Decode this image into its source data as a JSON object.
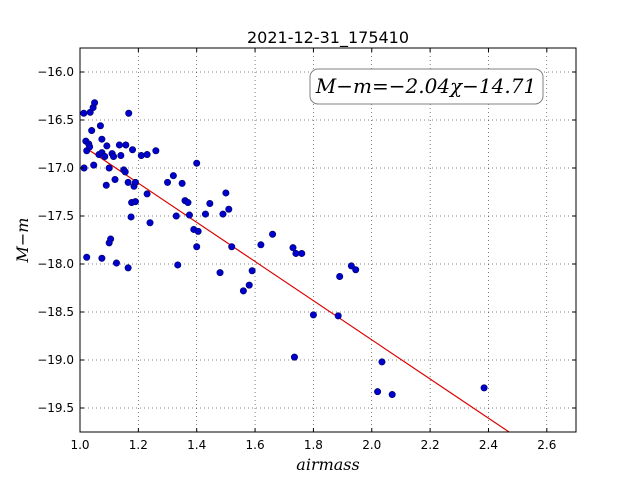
{
  "chart_data": {
    "type": "scatter",
    "title": "2021-12-31_175410",
    "xlabel": "airmass",
    "ylabel": "M−m",
    "xlim": [
      1.0,
      2.7
    ],
    "ylim": [
      -19.75,
      -15.75
    ],
    "x_ticks": [
      1.0,
      1.2,
      1.4,
      1.6,
      1.8,
      2.0,
      2.2,
      2.4,
      2.6
    ],
    "x_tick_labels": [
      "1.0",
      "1.2",
      "1.4",
      "1.6",
      "1.8",
      "2.0",
      "2.2",
      "2.4",
      "2.6"
    ],
    "y_ticks": [
      -16.0,
      -16.5,
      -17.0,
      -17.5,
      -18.0,
      -18.5,
      -19.0,
      -19.5
    ],
    "y_tick_labels": [
      "−16.0",
      "−16.5",
      "−17.0",
      "−17.5",
      "−18.0",
      "−18.5",
      "−19.0",
      "−19.5"
    ],
    "grid": true,
    "annotation": "M−m=−2.04χ−14.71",
    "fit": {
      "slope": -2.04,
      "intercept": -14.71,
      "x_start": 1.03,
      "color": "#dd0000"
    },
    "point_color": "#0000cc",
    "points": [
      [
        1.013,
        -16.43
      ],
      [
        1.014,
        -17.0
      ],
      [
        1.02,
        -16.72
      ],
      [
        1.023,
        -16.82
      ],
      [
        1.03,
        -16.75
      ],
      [
        1.033,
        -16.78
      ],
      [
        1.035,
        -16.42
      ],
      [
        1.04,
        -16.61
      ],
      [
        1.045,
        -16.37
      ],
      [
        1.05,
        -16.32
      ],
      [
        1.047,
        -16.97
      ],
      [
        1.023,
        -17.93
      ],
      [
        1.065,
        -16.86
      ],
      [
        1.07,
        -16.56
      ],
      [
        1.075,
        -16.7
      ],
      [
        1.075,
        -16.84
      ],
      [
        1.085,
        -16.88
      ],
      [
        1.092,
        -16.77
      ],
      [
        1.09,
        -17.18
      ],
      [
        1.1,
        -17.0
      ],
      [
        1.11,
        -16.85
      ],
      [
        1.12,
        -17.12
      ],
      [
        1.115,
        -16.88
      ],
      [
        1.135,
        -16.76
      ],
      [
        1.14,
        -16.87
      ],
      [
        1.15,
        -17.02
      ],
      [
        1.157,
        -16.76
      ],
      [
        1.155,
        -17.04
      ],
      [
        1.165,
        -17.15
      ],
      [
        1.167,
        -16.43
      ],
      [
        1.18,
        -16.81
      ],
      [
        1.185,
        -17.19
      ],
      [
        1.19,
        -17.15
      ],
      [
        1.175,
        -17.51
      ],
      [
        1.177,
        -17.36
      ],
      [
        1.19,
        -17.35
      ],
      [
        1.1,
        -17.78
      ],
      [
        1.105,
        -17.74
      ],
      [
        1.125,
        -17.99
      ],
      [
        1.075,
        -17.94
      ],
      [
        1.165,
        -18.04
      ],
      [
        1.21,
        -16.87
      ],
      [
        1.23,
        -16.86
      ],
      [
        1.23,
        -17.27
      ],
      [
        1.24,
        -17.57
      ],
      [
        1.26,
        -16.82
      ],
      [
        1.3,
        -17.15
      ],
      [
        1.32,
        -17.08
      ],
      [
        1.33,
        -17.5
      ],
      [
        1.335,
        -18.01
      ],
      [
        1.35,
        -17.16
      ],
      [
        1.36,
        -17.34
      ],
      [
        1.37,
        -17.36
      ],
      [
        1.375,
        -17.49
      ],
      [
        1.39,
        -17.64
      ],
      [
        1.4,
        -16.95
      ],
      [
        1.405,
        -17.66
      ],
      [
        1.4,
        -17.82
      ],
      [
        1.43,
        -17.48
      ],
      [
        1.445,
        -17.37
      ],
      [
        1.48,
        -18.09
      ],
      [
        1.49,
        -17.48
      ],
      [
        1.5,
        -17.26
      ],
      [
        1.51,
        -17.43
      ],
      [
        1.52,
        -17.82
      ],
      [
        1.56,
        -18.28
      ],
      [
        1.58,
        -18.22
      ],
      [
        1.59,
        -18.07
      ],
      [
        1.62,
        -17.8
      ],
      [
        1.66,
        -17.69
      ],
      [
        1.73,
        -17.83
      ],
      [
        1.74,
        -17.89
      ],
      [
        1.76,
        -17.89
      ],
      [
        1.735,
        -18.97
      ],
      [
        1.8,
        -18.53
      ],
      [
        1.885,
        -18.54
      ],
      [
        1.89,
        -18.13
      ],
      [
        1.93,
        -18.02
      ],
      [
        1.945,
        -18.06
      ],
      [
        2.02,
        -19.33
      ],
      [
        2.035,
        -19.02
      ],
      [
        2.07,
        -19.36
      ],
      [
        2.385,
        -19.29
      ]
    ]
  }
}
